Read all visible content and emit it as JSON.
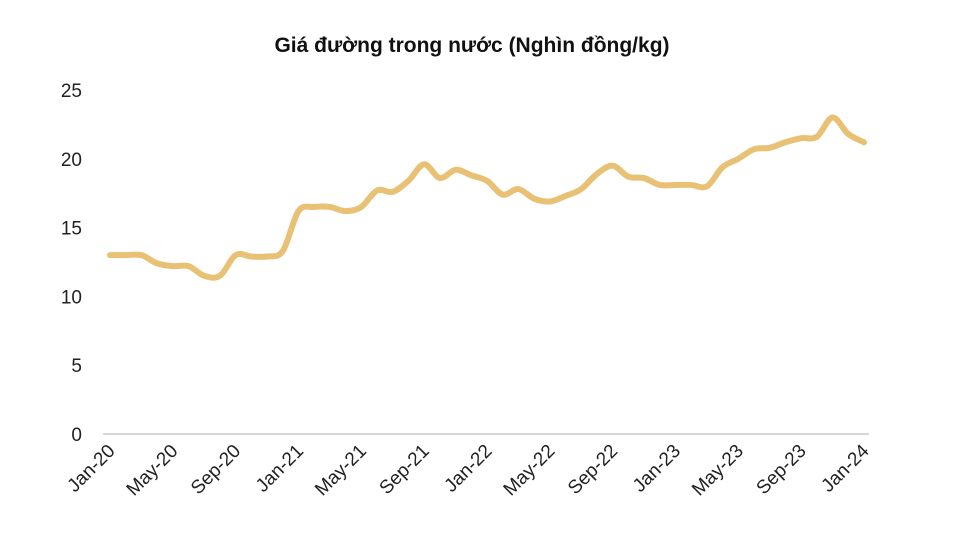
{
  "chart_data": {
    "type": "line",
    "title": "Giá đường trong nước (Nghìn đồng/kg)",
    "xlabel": "",
    "ylabel": "",
    "ylim": [
      0,
      25
    ],
    "y_ticks": [
      "0",
      "5",
      "10",
      "15",
      "20",
      "25"
    ],
    "x_tick_labels": [
      "Jan-20",
      "May-20",
      "Sep-20",
      "Jan-21",
      "May-21",
      "Sep-21",
      "Jan-22",
      "May-22",
      "Sep-22",
      "Jan-23",
      "May-23",
      "Sep-23",
      "Jan-24"
    ],
    "grid": false,
    "legend": "none",
    "line_color": "#e8c175",
    "x": [
      "Jan-20",
      "Feb-20",
      "Mar-20",
      "Apr-20",
      "May-20",
      "Jun-20",
      "Jul-20",
      "Aug-20",
      "Sep-20",
      "Oct-20",
      "Nov-20",
      "Dec-20",
      "Jan-21",
      "Feb-21",
      "Mar-21",
      "Apr-21",
      "May-21",
      "Jun-21",
      "Jul-21",
      "Aug-21",
      "Sep-21",
      "Oct-21",
      "Nov-21",
      "Dec-21",
      "Jan-22",
      "Feb-22",
      "Mar-22",
      "Apr-22",
      "May-22",
      "Jun-22",
      "Jul-22",
      "Aug-22",
      "Sep-22",
      "Oct-22",
      "Nov-22",
      "Dec-22",
      "Jan-23",
      "Feb-23",
      "Mar-23",
      "Apr-23",
      "May-23",
      "Jun-23",
      "Jul-23",
      "Aug-23",
      "Sep-23",
      "Oct-23",
      "Nov-23",
      "Dec-23",
      "Jan-24"
    ],
    "values": [
      13.0,
      13.0,
      13.0,
      12.4,
      12.2,
      12.2,
      11.5,
      11.5,
      13.0,
      12.9,
      12.9,
      13.3,
      16.2,
      16.5,
      16.5,
      16.2,
      16.5,
      17.7,
      17.6,
      18.4,
      19.6,
      18.6,
      19.2,
      18.8,
      18.4,
      17.4,
      17.8,
      17.1,
      16.9,
      17.3,
      17.8,
      18.9,
      19.5,
      18.7,
      18.6,
      18.1,
      18.1,
      18.1,
      18.0,
      19.4,
      20.0,
      20.7,
      20.8,
      21.2,
      21.5,
      21.6,
      23.0,
      21.8,
      21.2
    ]
  }
}
